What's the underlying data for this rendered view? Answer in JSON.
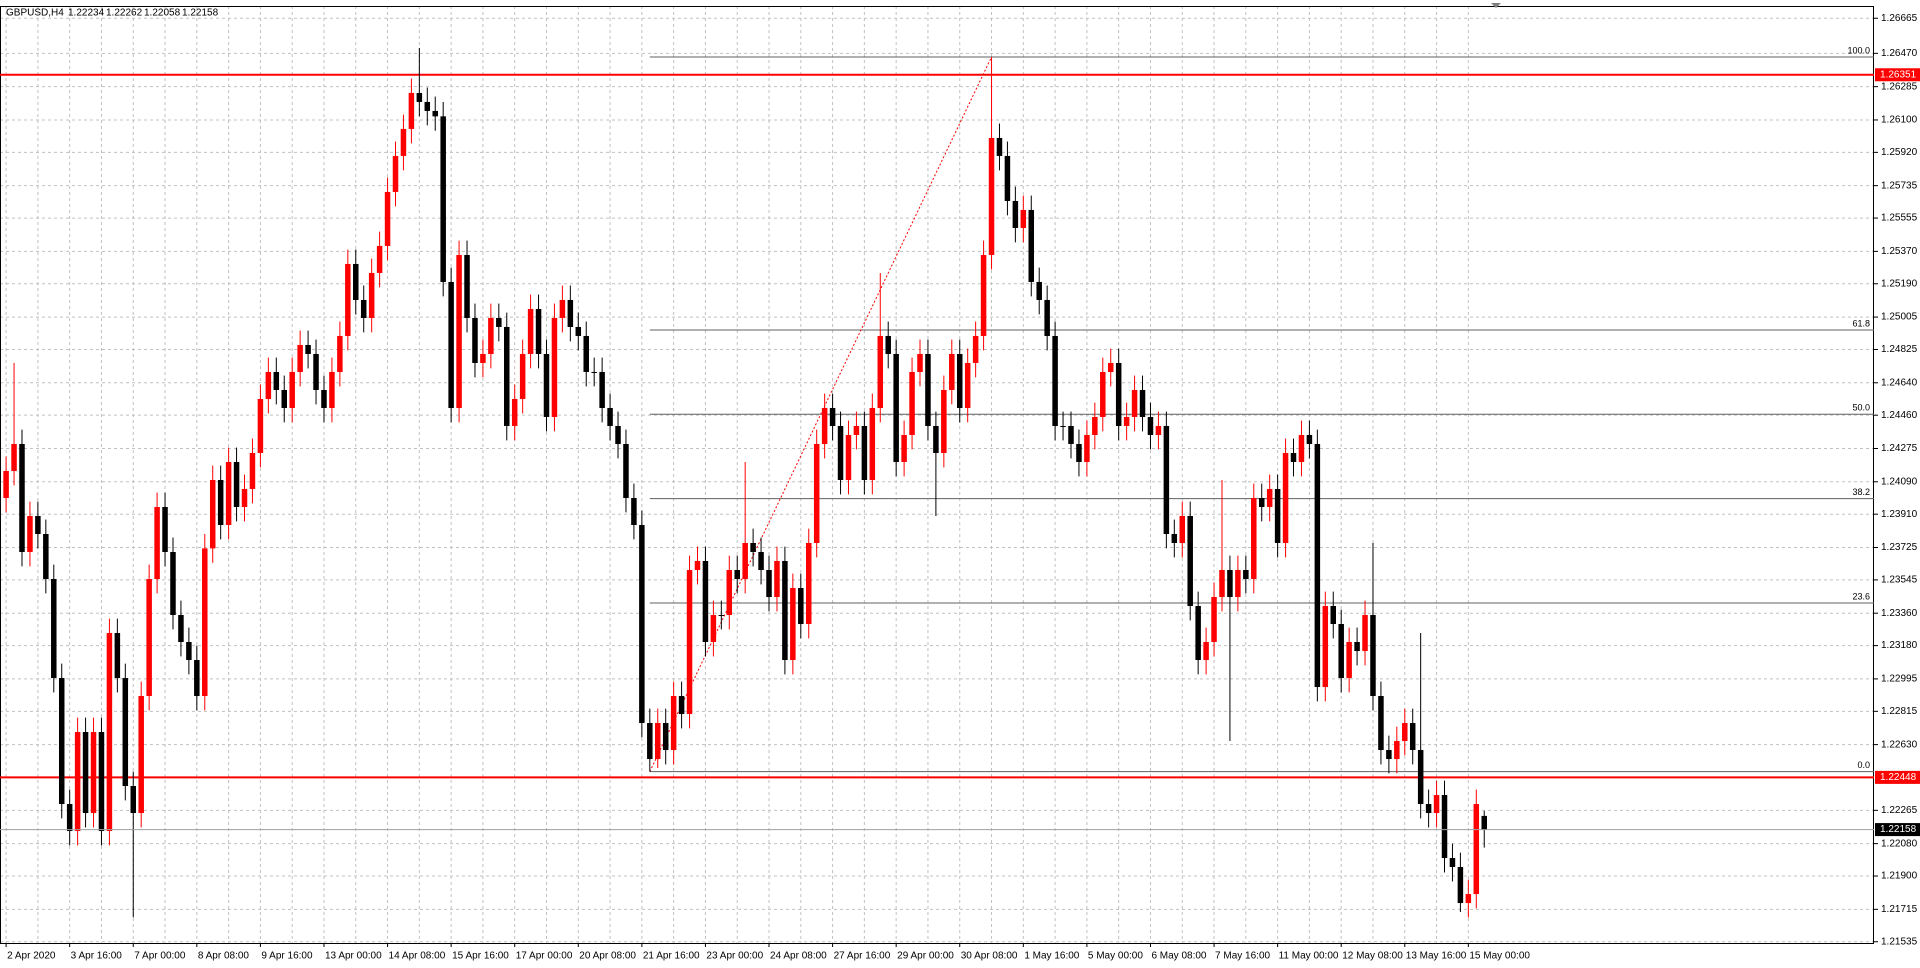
{
  "chart_data": {
    "type": "candlestick",
    "title": "GBPUSD,H4",
    "categories": [
      "2 Apr 2020",
      null,
      null,
      null,
      null,
      null,
      null,
      null,
      "3 Apr 16:00",
      null,
      null,
      null,
      null,
      null,
      null,
      null,
      "7 Apr 00:00",
      null,
      null,
      null,
      null,
      null,
      null,
      null,
      "8 Apr 08:00",
      null,
      null,
      null,
      null,
      null,
      null,
      null,
      "9 Apr 16:00",
      null,
      null,
      null,
      null,
      null,
      null,
      null,
      "13 Apr 00:00",
      null,
      null,
      null,
      null,
      null,
      null,
      null,
      "14 Apr 08:00",
      null,
      null,
      null,
      null,
      null,
      null,
      null,
      "15 Apr 16:00",
      null,
      null,
      null,
      null,
      null,
      null,
      null,
      "17 Apr 00:00",
      null,
      null,
      null,
      null,
      null,
      null,
      null,
      "20 Apr 08:00",
      null,
      null,
      null,
      null,
      null,
      null,
      null,
      "21 Apr 16:00",
      null,
      null,
      null,
      null,
      null,
      null,
      null,
      "23 Apr 00:00",
      null,
      null,
      null,
      null,
      null,
      null,
      null,
      "24 Apr 08:00",
      null,
      null,
      null,
      null,
      null,
      null,
      null,
      "27 Apr 16:00",
      null,
      null,
      null,
      null,
      null,
      null,
      null,
      "29 Apr 00:00",
      null,
      null,
      null,
      null,
      null,
      null,
      null,
      "30 Apr 08:00",
      null,
      null,
      null,
      null,
      null,
      null,
      null,
      "1 May 16:00",
      null,
      null,
      null,
      null,
      null,
      null,
      null,
      "5 May 00:00",
      null,
      null,
      null,
      null,
      null,
      null,
      null,
      "6 May 08:00",
      null,
      null,
      null,
      null,
      null,
      null,
      null,
      "7 May 16:00",
      null,
      null,
      null,
      null,
      null,
      null,
      null,
      "11 May 00:00",
      null,
      null,
      null,
      null,
      null,
      null,
      null,
      "12 May 08:00",
      null,
      null,
      null,
      null,
      null,
      null,
      null,
      "13 May 16:00",
      null,
      null,
      null,
      null,
      null,
      null,
      null,
      "15 May 00:00",
      null,
      null
    ],
    "open": [
      1.24,
      1.2415,
      1.243,
      1.237,
      1.239,
      1.238,
      1.2355,
      1.23,
      1.223,
      1.2215,
      1.227,
      1.2225,
      1.227,
      1.2215,
      1.2325,
      1.23,
      1.224,
      1.2225,
      1.229,
      1.2355,
      1.2395,
      1.237,
      1.2335,
      1.232,
      1.231,
      1.229,
      1.2372,
      1.241,
      1.2385,
      1.242,
      1.2395,
      1.2405,
      1.2425,
      1.2455,
      1.247,
      1.246,
      1.245,
      1.247,
      1.2485,
      1.248,
      1.246,
      1.245,
      1.247,
      1.249,
      1.253,
      1.251,
      1.25,
      1.2525,
      1.254,
      1.257,
      1.259,
      1.2605,
      1.2625,
      1.262,
      1.2615,
      1.2612,
      1.252,
      1.245,
      1.2535,
      1.25,
      1.2475,
      1.248,
      1.25,
      1.2495,
      1.244,
      1.2455,
      1.248,
      1.2505,
      1.248,
      1.2445,
      1.25,
      1.251,
      1.2495,
      1.249,
      1.247,
      1.247,
      1.245,
      1.244,
      1.243,
      1.24,
      1.2385,
      1.2275,
      1.2255,
      1.2275,
      1.226,
      1.229,
      1.228,
      1.236,
      1.2365,
      1.232,
      1.2335,
      1.2335,
      1.236,
      1.2355,
      1.2375,
      1.237,
      1.236,
      1.2345,
      1.2365,
      1.231,
      1.235,
      1.233,
      1.2375,
      1.243,
      1.245,
      1.244,
      1.241,
      1.2435,
      1.244,
      1.241,
      1.245,
      1.249,
      1.248,
      1.242,
      1.2435,
      1.247,
      1.248,
      1.244,
      1.2425,
      1.246,
      1.248,
      1.245,
      1.2475,
      1.249,
      1.2535,
      1.26,
      1.259,
      1.2565,
      1.255,
      1.256,
      1.252,
      1.251,
      1.249,
      1.244,
      1.244,
      1.243,
      1.242,
      1.2435,
      1.2445,
      1.247,
      1.2475,
      1.244,
      1.2445,
      1.246,
      1.2445,
      1.2435,
      1.244,
      1.238,
      1.2375,
      1.239,
      1.234,
      1.231,
      1.232,
      1.2345,
      1.236,
      1.2345,
      1.236,
      1.2355,
      1.24,
      1.2395,
      1.2405,
      1.2375,
      1.2425,
      1.242,
      1.2435,
      1.243,
      1.2295,
      1.234,
      1.233,
      1.23,
      1.232,
      1.2315,
      1.2335,
      1.229,
      1.226,
      1.2255,
      1.2265,
      1.2275,
      1.226,
      1.223,
      1.2225,
      1.2235,
      1.22,
      1.2195,
      1.2175,
      1.218,
      1.22234
    ],
    "high": [
      1.2423,
      1.2475,
      1.2438,
      1.2398,
      1.2398,
      1.2388,
      1.2363,
      1.2308,
      1.2238,
      1.2278,
      1.2278,
      1.2278,
      1.2278,
      1.2333,
      1.2333,
      1.2308,
      1.2248,
      1.2298,
      1.2363,
      1.2403,
      1.2403,
      1.2378,
      1.2343,
      1.2328,
      1.2318,
      1.238,
      1.2418,
      1.2418,
      1.2428,
      1.2428,
      1.2413,
      1.2433,
      1.2463,
      1.2478,
      1.2478,
      1.2468,
      1.2478,
      1.2493,
      1.2493,
      1.2488,
      1.2468,
      1.2478,
      1.2498,
      1.2538,
      1.2538,
      1.2518,
      1.2533,
      1.2548,
      1.2578,
      1.2598,
      1.2613,
      1.2633,
      1.265,
      1.2628,
      1.2623,
      1.262,
      1.2528,
      1.2543,
      1.2543,
      1.2508,
      1.2488,
      1.2508,
      1.2508,
      1.2503,
      1.2463,
      1.2488,
      1.2513,
      1.2513,
      1.2488,
      1.2508,
      1.2518,
      1.2518,
      1.2503,
      1.2498,
      1.2478,
      1.2478,
      1.2458,
      1.2448,
      1.2438,
      1.2408,
      1.2393,
      1.2283,
      1.2283,
      1.2283,
      1.2298,
      1.2298,
      1.2368,
      1.2373,
      1.2373,
      1.2343,
      1.2343,
      1.2368,
      1.2368,
      1.242,
      1.2383,
      1.2378,
      1.2368,
      1.2373,
      1.2373,
      1.2358,
      1.2358,
      1.2383,
      1.2438,
      1.2458,
      1.2458,
      1.2448,
      1.2443,
      1.2448,
      1.2448,
      1.2458,
      1.2525,
      1.2498,
      1.2488,
      1.2443,
      1.2478,
      1.2488,
      1.2488,
      1.2448,
      1.2468,
      1.2488,
      1.2488,
      1.2483,
      1.2498,
      1.2543,
      1.2645,
      1.2608,
      1.2598,
      1.2573,
      1.2568,
      1.2568,
      1.2528,
      1.2518,
      1.2498,
      1.2448,
      1.2448,
      1.2438,
      1.2443,
      1.2453,
      1.2478,
      1.2483,
      1.2483,
      1.2453,
      1.2468,
      1.2468,
      1.2453,
      1.2448,
      1.2448,
      1.2388,
      1.2398,
      1.2398,
      1.2348,
      1.2328,
      1.2353,
      1.241,
      1.2368,
      1.2368,
      1.2368,
      1.2408,
      1.2408,
      1.2413,
      1.2413,
      1.2433,
      1.2433,
      1.2443,
      1.2443,
      1.2438,
      1.2348,
      1.2348,
      1.2338,
      1.2328,
      1.2328,
      1.2343,
      1.2375,
      1.2298,
      1.2268,
      1.2273,
      1.2283,
      1.2283,
      1.2325,
      1.2238,
      1.2243,
      1.2243,
      1.2208,
      1.2203,
      1.2188,
      1.2238,
      1.22262
    ],
    "low": [
      1.2392,
      1.2407,
      1.2362,
      1.2362,
      1.2372,
      1.2347,
      1.2292,
      1.2222,
      1.2207,
      1.2207,
      1.2217,
      1.2217,
      1.2207,
      1.2207,
      1.2292,
      1.2232,
      1.2167,
      1.2217,
      1.2282,
      1.2347,
      1.2362,
      1.2327,
      1.2312,
      1.2302,
      1.2282,
      1.2282,
      1.2364,
      1.2377,
      1.2377,
      1.2387,
      1.2387,
      1.2397,
      1.2417,
      1.2447,
      1.2452,
      1.2442,
      1.2442,
      1.2462,
      1.2472,
      1.2452,
      1.2442,
      1.2442,
      1.2462,
      1.2482,
      1.2502,
      1.2492,
      1.2492,
      1.2517,
      1.2532,
      1.2562,
      1.2582,
      1.2597,
      1.2612,
      1.2607,
      1.2604,
      1.2512,
      1.2442,
      1.2442,
      1.2492,
      1.2467,
      1.2467,
      1.2472,
      1.2487,
      1.2432,
      1.2432,
      1.2447,
      1.2472,
      1.2472,
      1.2437,
      1.2437,
      1.2492,
      1.2487,
      1.2482,
      1.2462,
      1.2462,
      1.2442,
      1.2432,
      1.2422,
      1.2392,
      1.2377,
      1.2267,
      1.2248,
      1.225,
      1.2252,
      1.2252,
      1.2272,
      1.2272,
      1.2352,
      1.2312,
      1.2312,
      1.2327,
      1.2327,
      1.2347,
      1.2347,
      1.2362,
      1.2352,
      1.2337,
      1.2337,
      1.2302,
      1.2302,
      1.2322,
      1.2322,
      1.2367,
      1.2422,
      1.2432,
      1.2402,
      1.2402,
      1.2427,
      1.2402,
      1.2402,
      1.2442,
      1.2472,
      1.2412,
      1.2412,
      1.2427,
      1.2462,
      1.2432,
      1.239,
      1.2417,
      1.2452,
      1.2442,
      1.2442,
      1.2467,
      1.2482,
      1.2527,
      1.2582,
      1.2557,
      1.2542,
      1.2542,
      1.2512,
      1.2502,
      1.2482,
      1.2432,
      1.2432,
      1.2422,
      1.2412,
      1.2412,
      1.2427,
      1.2437,
      1.2462,
      1.2432,
      1.2432,
      1.2437,
      1.2437,
      1.2427,
      1.2427,
      1.2372,
      1.2367,
      1.2367,
      1.2332,
      1.2302,
      1.2302,
      1.2312,
      1.2337,
      1.2265,
      1.2337,
      1.2347,
      1.2347,
      1.2387,
      1.2387,
      1.2367,
      1.2367,
      1.2412,
      1.2412,
      1.2422,
      1.2287,
      1.2287,
      1.2322,
      1.2292,
      1.2292,
      1.2307,
      1.2307,
      1.2282,
      1.2252,
      1.2247,
      1.2247,
      1.2257,
      1.2252,
      1.2222,
      1.2217,
      1.2217,
      1.2192,
      1.2187,
      1.217,
      1.2167,
      1.2172,
      1.22058
    ],
    "close": [
      1.2415,
      1.243,
      1.237,
      1.239,
      1.238,
      1.2355,
      1.23,
      1.223,
      1.2215,
      1.227,
      1.2225,
      1.227,
      1.2215,
      1.2325,
      1.23,
      1.224,
      1.2225,
      1.229,
      1.2355,
      1.2395,
      1.237,
      1.2335,
      1.232,
      1.231,
      1.229,
      1.2372,
      1.241,
      1.2385,
      1.242,
      1.2395,
      1.2405,
      1.2425,
      1.2455,
      1.247,
      1.246,
      1.245,
      1.247,
      1.2485,
      1.248,
      1.246,
      1.245,
      1.247,
      1.249,
      1.253,
      1.251,
      1.25,
      1.2525,
      1.254,
      1.257,
      1.259,
      1.2605,
      1.2625,
      1.262,
      1.2615,
      1.2612,
      1.252,
      1.245,
      1.2535,
      1.25,
      1.2475,
      1.248,
      1.25,
      1.2495,
      1.244,
      1.2455,
      1.248,
      1.2505,
      1.248,
      1.2445,
      1.25,
      1.251,
      1.2495,
      1.249,
      1.247,
      1.247,
      1.245,
      1.244,
      1.243,
      1.24,
      1.2385,
      1.2275,
      1.2255,
      1.2275,
      1.226,
      1.229,
      1.228,
      1.236,
      1.2365,
      1.232,
      1.2335,
      1.2335,
      1.236,
      1.2355,
      1.2375,
      1.237,
      1.236,
      1.2345,
      1.2365,
      1.231,
      1.235,
      1.233,
      1.2375,
      1.243,
      1.245,
      1.244,
      1.241,
      1.2435,
      1.244,
      1.241,
      1.245,
      1.249,
      1.248,
      1.242,
      1.2435,
      1.247,
      1.248,
      1.244,
      1.2425,
      1.246,
      1.248,
      1.245,
      1.2475,
      1.249,
      1.2535,
      1.26,
      1.259,
      1.2565,
      1.255,
      1.256,
      1.252,
      1.251,
      1.249,
      1.244,
      1.244,
      1.243,
      1.242,
      1.2435,
      1.2445,
      1.247,
      1.2475,
      1.244,
      1.2445,
      1.246,
      1.2445,
      1.2435,
      1.244,
      1.238,
      1.2375,
      1.239,
      1.234,
      1.231,
      1.232,
      1.2345,
      1.236,
      1.2345,
      1.236,
      1.2355,
      1.24,
      1.2395,
      1.2405,
      1.2375,
      1.2425,
      1.242,
      1.2435,
      1.243,
      1.2295,
      1.234,
      1.233,
      1.23,
      1.232,
      1.2315,
      1.2335,
      1.229,
      1.226,
      1.2255,
      1.2265,
      1.2275,
      1.226,
      1.223,
      1.2225,
      1.2235,
      1.22,
      1.2195,
      1.2175,
      1.218,
      1.223,
      1.22158
    ],
    "up_color": "#ff0000",
    "down_color": "#000000",
    "ylim": [
      1.21528,
      1.26733
    ],
    "yticks": [
      1.26665,
      {
        "value": 1.2647,
        "label": "1.26470"
      },
      1.26285,
      {
        "value": 1.261,
        "label": "1.26100"
      },
      {
        "value": 1.2592,
        "label": "1.25920"
      },
      1.25735,
      1.25555,
      {
        "value": 1.2537,
        "label": "1.25370"
      },
      {
        "value": 1.2519,
        "label": "1.25190"
      },
      1.25005,
      1.24825,
      {
        "value": 1.2464,
        "label": "1.24640"
      },
      {
        "value": 1.2446,
        "label": "1.24460"
      },
      1.24275,
      {
        "value": 1.2409,
        "label": "1.24090"
      },
      {
        "value": 1.2391,
        "label": "1.23910"
      },
      1.23725,
      1.23545,
      {
        "value": 1.2336,
        "label": "1.23360"
      },
      {
        "value": 1.2318,
        "label": "1.23180"
      },
      1.22995,
      1.22815,
      {
        "value": 1.2263,
        "label": "1.22630"
      },
      1.22265,
      {
        "value": 1.2208,
        "label": "1.22080"
      },
      {
        "value": 1.219,
        "label": "1.21900"
      },
      1.21715,
      1.21535
    ],
    "grid": true,
    "hlines": [
      {
        "value": 1.26351,
        "color": "#ff0000"
      },
      {
        "value": 1.22448,
        "color": "#ff0000"
      }
    ],
    "fibonacci": {
      "low": 1.2248,
      "high": 1.2645,
      "from": 81,
      "to": 124,
      "color": "#ff0000",
      "levels": [
        {
          "value": 0,
          "label": "0.0"
        },
        23.6,
        38.2,
        {
          "value": 50,
          "label": "50.0"
        },
        61.8,
        {
          "value": 100,
          "label": "100.0"
        }
      ]
    }
  }
}
